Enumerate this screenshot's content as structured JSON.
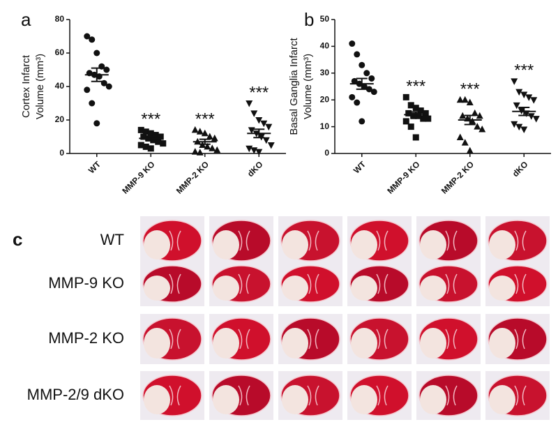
{
  "chart_data": [
    {
      "type": "dot",
      "panel_label": "a",
      "ylabel": [
        "Cortex Infarct",
        "Volume (mm³)"
      ],
      "categories": [
        "WT",
        "MMP-9 KO",
        "MMP-2 KO",
        "dKO"
      ],
      "markers": [
        "circle",
        "square",
        "triangle",
        "triangle-down"
      ],
      "values": [
        [
          70,
          68,
          60,
          52,
          50,
          48,
          47,
          46,
          42,
          40,
          38,
          30,
          18
        ],
        [
          14,
          13,
          12,
          11,
          10,
          10,
          9,
          8,
          7,
          6,
          5,
          4,
          3
        ],
        [
          14,
          13,
          12,
          10,
          9,
          7,
          5,
          4,
          3,
          2,
          1,
          0.5
        ],
        [
          30,
          24,
          20,
          18,
          16,
          14,
          12,
          10,
          8,
          5,
          3,
          2,
          1
        ]
      ],
      "mean": [
        47,
        9,
        7,
        12
      ],
      "sem": [
        4,
        1,
        1.5,
        2.5
      ],
      "significance": [
        null,
        "***",
        "***",
        "***"
      ],
      "ylim": [
        0,
        80
      ],
      "yticks": [
        0,
        20,
        40,
        60,
        80
      ],
      "color": "#111111"
    },
    {
      "type": "dot",
      "panel_label": "b",
      "ylabel": [
        "Basal  Ganglia  Infarct",
        "Volume (mm³)"
      ],
      "categories": [
        "WT",
        "MMP-9 KO",
        "MMP-2 KO",
        "dKO"
      ],
      "markers": [
        "circle",
        "square",
        "triangle",
        "triangle-down"
      ],
      "values": [
        [
          41,
          37,
          33,
          30,
          28,
          27,
          26,
          25,
          24,
          23,
          21,
          19,
          12
        ],
        [
          21,
          18,
          17,
          16,
          15,
          15,
          14,
          14,
          13,
          13,
          12,
          10,
          6
        ],
        [
          20,
          20,
          19,
          15,
          14,
          14,
          13,
          12,
          10,
          9,
          6,
          4,
          1
        ],
        [
          27,
          23,
          22,
          21,
          20,
          18,
          16,
          15,
          14,
          13,
          11,
          10,
          9
        ]
      ],
      "mean": [
        26,
        14.5,
        12.5,
        15.7
      ],
      "sem": [
        2,
        1,
        1.7,
        1.5
      ],
      "significance": [
        null,
        "***",
        "***",
        "***"
      ],
      "ylim": [
        0,
        50
      ],
      "yticks": [
        0,
        10,
        20,
        30,
        40,
        50
      ],
      "color": "#111111"
    }
  ],
  "panel_c": {
    "label": "c",
    "rows": [
      "WT",
      "MMP-9 KO",
      "MMP-2 KO",
      "MMP-2/9 dKO"
    ]
  }
}
